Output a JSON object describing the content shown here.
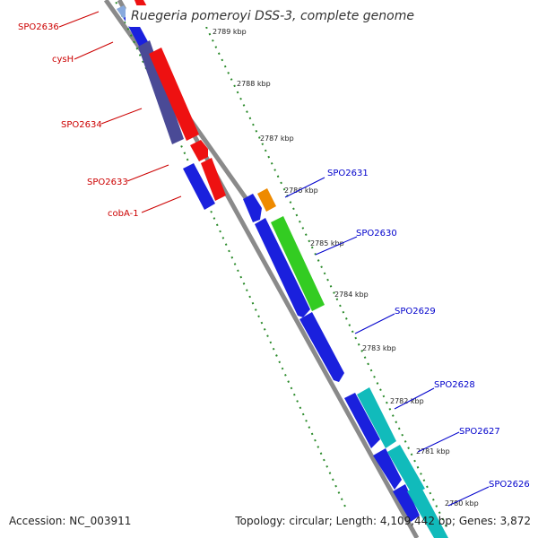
{
  "title": "Ruegeria pomeroyi DSS-3, complete genome",
  "footer": {
    "accession": "Accession: NC_003911",
    "summary": "Topology: circular; Length: 4,109,442 bp; Genes: 3,872"
  },
  "colors": {
    "backbone": "#8a8a8a",
    "tick": "#2a8a2a",
    "reverse_label": "#cc0000",
    "forward_label": "#0000cc"
  },
  "ticks": [
    "2789 kbp",
    "2788 kbp",
    "2787 kbp",
    "2786 kbp",
    "2785 kbp",
    "2784 kbp",
    "2783 kbp",
    "2782 kbp",
    "2781 kbp",
    "2780 kbp"
  ],
  "reverse_labels": [
    "SPO2636",
    "cysH",
    "SPO2634",
    "SPO2633",
    "cobA-1"
  ],
  "forward_labels": [
    "SPO2631",
    "SPO2630",
    "SPO2629",
    "SPO2628",
    "SPO2627",
    "SPO2626"
  ]
}
